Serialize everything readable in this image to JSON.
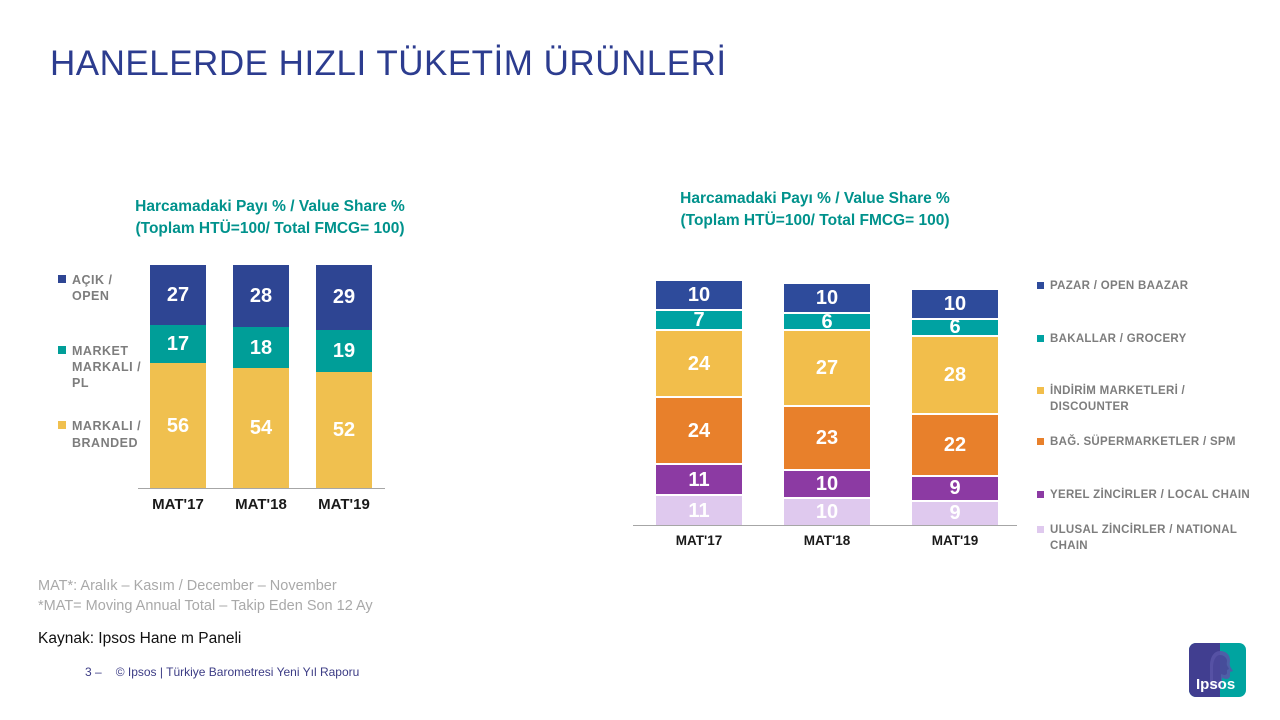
{
  "slide": {
    "title": "HANELERDE HIZLI TÜKETİM ÜRÜNLERİ",
    "footnote_line1": "MAT*: Aralık – Kasım / December – November",
    "footnote_line2": "*MAT= Moving Annual Total – Takip Eden Son 12 Ay",
    "source": "Kaynak: Ipsos Hane m Paneli",
    "page_label": "3 –",
    "copyright": "© Ipsos | Türkiye Barometresi Yeni Yıl Raporu",
    "logo_text": "Ipsos",
    "colors": {
      "slide_title": "#2C3C8F",
      "chart_title": "#00928C",
      "legend_text": "#7D7D7D",
      "footnote": "#A9A9A9",
      "footer_text": "#3C3C85",
      "axis_line": "#A6A6A6",
      "logo_indigo": "#413E90",
      "logo_teal": "#00A4A0"
    }
  },
  "chart_data": [
    {
      "type": "bar",
      "stacked": true,
      "title": "Harcamadaki Payı % / Value Share %",
      "subtitle": "(Toplam HTÜ=100/ Total FMCG= 100)",
      "categories": [
        "MAT'17",
        "MAT'18",
        "MAT'19"
      ],
      "series": [
        {
          "name": "AÇIK / OPEN",
          "color": "#2E4593",
          "values": [
            27,
            28,
            29
          ]
        },
        {
          "name": "MARKET MARKALI / PL",
          "color": "#009E98",
          "values": [
            17,
            18,
            19
          ]
        },
        {
          "name": "MARKALI / BRANDED",
          "color": "#F0C04F",
          "values": [
            56,
            54,
            52
          ]
        }
      ],
      "legend_position": "left",
      "axis_total": 100,
      "grid": false,
      "data_labels": "inside-white-bold"
    },
    {
      "type": "bar",
      "stacked": true,
      "title": "Harcamadaki Payı % / Value Share %",
      "subtitle": "(Toplam HTÜ=100/ Total FMCG= 100)",
      "categories": [
        "MAT'17",
        "MAT'18",
        "MAT'19"
      ],
      "series": [
        {
          "name": "PAZAR / OPEN BAAZAR",
          "color": "#2E4B9B",
          "values": [
            10,
            10,
            10
          ]
        },
        {
          "name": "BAKALLAR / GROCERY",
          "color": "#00A2A2",
          "values": [
            7,
            6,
            6
          ]
        },
        {
          "name": "İNDİRİM MARKETLERİ / DISCOUNTER",
          "color": "#F2BE4B",
          "values": [
            24,
            27,
            28
          ]
        },
        {
          "name": "BAĞ. SÜPERMARKETLER / SPM",
          "color": "#E8802B",
          "values": [
            24,
            23,
            22
          ]
        },
        {
          "name": "YEREL ZİNCİRLER / LOCAL CHAIN",
          "color": "#8C3AA3",
          "values": [
            11,
            10,
            9
          ]
        },
        {
          "name": "ULUSAL ZİNCİRLER / NATIONAL CHAIN",
          "color": "#DFC9EE",
          "values": [
            11,
            10,
            9
          ]
        }
      ],
      "legend_position": "right",
      "grid": false,
      "data_labels": "inside-white-bold"
    }
  ]
}
